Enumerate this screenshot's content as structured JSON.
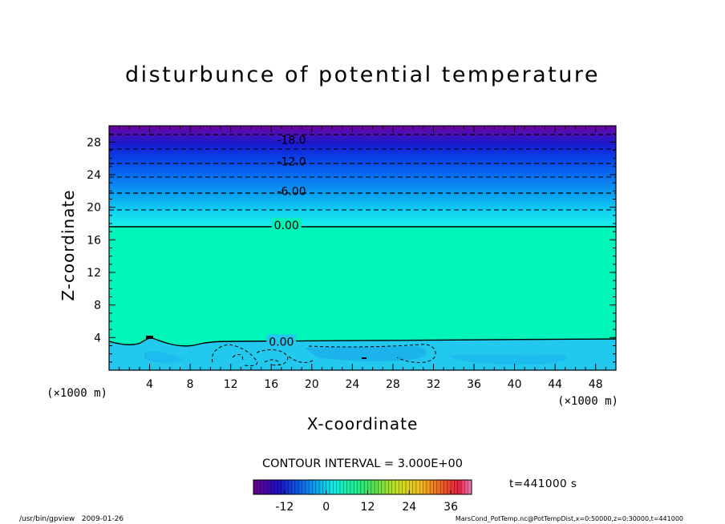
{
  "chart_data": {
    "type": "heatmap",
    "title": "disturbunce of potential temperature",
    "xlabel": "X-coordinate",
    "ylabel": "Z-coordinate",
    "x_unit": "(×1000 m)",
    "y_unit": "(×1000 m)",
    "xlim": [
      0,
      50
    ],
    "ylim": [
      0,
      30
    ],
    "xticks": [
      4,
      8,
      12,
      16,
      20,
      24,
      28,
      32,
      36,
      40,
      44,
      48
    ],
    "yticks": [
      4,
      8,
      12,
      16,
      20,
      24,
      28
    ],
    "contour_labels": [
      {
        "text": "-18.0",
        "x": 18,
        "z": 28.3,
        "dashed": true
      },
      {
        "text": "-12.0",
        "x": 18,
        "z": 25.6,
        "dashed": true
      },
      {
        "text": "-6.00",
        "x": 18,
        "z": 22.0,
        "dashed": true
      },
      {
        "text": "0.00",
        "x": 17.5,
        "z": 17.8,
        "dashed": false
      },
      {
        "text": "0.00",
        "x": 17,
        "z": 3.5,
        "dashed": false
      }
    ],
    "contour_interval": "CONTOUR INTERVAL = 3.000E+00",
    "colorbar": {
      "ticks": [
        "-12",
        "0",
        "12",
        "24",
        "36"
      ],
      "tick_values": [
        -12,
        0,
        12,
        24,
        36
      ],
      "range": [
        -21,
        42
      ],
      "colormap": "rainbow (purple-blue-cyan-green-yellow-red-pink)"
    },
    "time_label": "t=441000 s"
  },
  "footer": {
    "left": "/usr/bin/gpview   2009-01-26",
    "right": "MarsCond_PotTemp.nc@PotTempDist,x=0:50000,z=0:30000,t=441000"
  },
  "colors": {
    "background": "#ffffff",
    "uniform_zero_field": "#00f5b8",
    "surface_layer": "#1ec8ee",
    "upper_layer_top": "#7000a0"
  }
}
